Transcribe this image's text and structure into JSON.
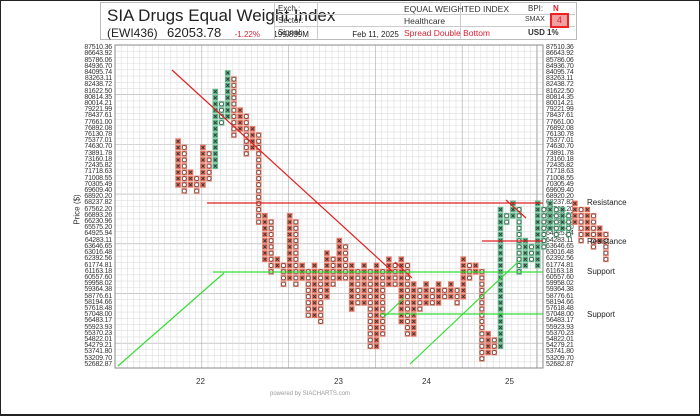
{
  "header": {
    "title": "SIA Drugs Equal Weight Index",
    "symbol": "(EWI436)",
    "price": "62053.78",
    "change_pct": "-1.22%",
    "volume": "199.839M",
    "date": "Feb 11, 2025",
    "exch_label": "Exch.:",
    "exch_value": "EQUAL WEIGHTED INDEX",
    "sector_label": "Sector:",
    "sector_value": "Healthcare",
    "signal_label": "Signal:",
    "signal_value": "Spread Double Bottom",
    "bpi_label": "BPI:",
    "bpi_value": "N",
    "smax_label": "SMAX",
    "smax_value": "4",
    "usd_label": "USD",
    "usd_value": "1%"
  },
  "footer": "powered by SIACHARTS.com",
  "colors": {
    "x_fill": "#e8735f",
    "o_fill": "#e8735f",
    "green_fill": "#5fb88a",
    "resistance": "#e02020",
    "support": "#33dd33",
    "grid": "#bbbbbb"
  },
  "chart_data": {
    "type": "point-and-figure",
    "title": "SIA Drugs Equal Weight Index",
    "ylabel": "Price ($)",
    "xlabel": "",
    "x_tick_labels": [
      "22",
      "23",
      "24",
      "25"
    ],
    "price_levels": [
      "87510.36",
      "86643.92",
      "85786.06",
      "84936.70",
      "84095.74",
      "83263.11",
      "82438.72",
      "81622.50",
      "80814.35",
      "80014.21",
      "79221.99",
      "78437.61",
      "77661.00",
      "76892.08",
      "76130.78",
      "75377.01",
      "74630.70",
      "73891.78",
      "73160.18",
      "72435.82",
      "71718.63",
      "71008.55",
      "70305.49",
      "69609.40",
      "68920.20",
      "68237.82",
      "67562.20",
      "66893.26",
      "66230.96",
      "65575.20",
      "64925.94",
      "64283.11",
      "63646.65",
      "63016.48",
      "62392.56",
      "61774.81",
      "61163.18",
      "60557.60",
      "59958.02",
      "59364.38",
      "58776.61",
      "58194.66",
      "57618.48",
      "57048.00",
      "56483.17",
      "55923.93",
      "55370.23",
      "54822.01",
      "54279.21",
      "53741.80",
      "53209.70",
      "52682.87"
    ],
    "annotations": [
      {
        "label": "Resistance",
        "price": "68920.20"
      },
      {
        "label": "Resistance",
        "price": "64283.11"
      },
      {
        "label": "Support",
        "price": "61774.81"
      },
      {
        "label": "Support",
        "price": "57618.48"
      }
    ],
    "columns": [
      {
        "t": "X",
        "hi": 15,
        "lo": 22
      },
      {
        "t": "O",
        "hi": 16,
        "lo": 23
      },
      {
        "t": "X",
        "hi": 20,
        "lo": 22
      },
      {
        "t": "O",
        "hi": 21,
        "lo": 23
      },
      {
        "t": "X",
        "hi": 16,
        "lo": 22
      },
      {
        "t": "O",
        "hi": 17,
        "lo": 21
      },
      {
        "t": "X",
        "hi": 7,
        "lo": 19
      },
      {
        "t": "O",
        "hi": 9,
        "lo": 12
      },
      {
        "t": "X",
        "hi": 4,
        "lo": 11
      },
      {
        "t": "O",
        "hi": 5,
        "lo": 14
      },
      {
        "t": "X",
        "hi": 10,
        "lo": 13
      },
      {
        "t": "O",
        "hi": 11,
        "lo": 17
      },
      {
        "t": "X",
        "hi": 13,
        "lo": 16
      },
      {
        "t": "O",
        "hi": 14,
        "lo": 28
      },
      {
        "t": "X",
        "hi": 27,
        "lo": 34
      },
      {
        "t": "O",
        "hi": 28,
        "lo": 36
      },
      {
        "t": "X",
        "hi": 34,
        "lo": 35
      },
      {
        "t": "O",
        "hi": 35,
        "lo": 38
      },
      {
        "t": "X",
        "hi": 27,
        "lo": 37
      },
      {
        "t": "O",
        "hi": 28,
        "lo": 38
      },
      {
        "t": "X",
        "hi": 35,
        "lo": 37
      },
      {
        "t": "O",
        "hi": 36,
        "lo": 43
      },
      {
        "t": "X",
        "hi": 35,
        "lo": 43
      },
      {
        "t": "O",
        "hi": 36,
        "lo": 44
      },
      {
        "t": "X",
        "hi": 33,
        "lo": 40
      },
      {
        "t": "O",
        "hi": 34,
        "lo": 38
      },
      {
        "t": "X",
        "hi": 31,
        "lo": 37
      },
      {
        "t": "O",
        "hi": 32,
        "lo": 37
      },
      {
        "t": "X",
        "hi": 35,
        "lo": 42
      },
      {
        "t": "O",
        "hi": 36,
        "lo": 41
      },
      {
        "t": "X",
        "hi": 35,
        "lo": 41
      },
      {
        "t": "O",
        "hi": 36,
        "lo": 48
      },
      {
        "t": "X",
        "hi": 35,
        "lo": 48
      },
      {
        "t": "O",
        "hi": 36,
        "lo": 46
      },
      {
        "t": "X",
        "hi": 34,
        "lo": 38
      },
      {
        "t": "O",
        "hi": 35,
        "lo": 38
      },
      {
        "t": "X",
        "hi": 34,
        "lo": 44
      },
      {
        "t": "O",
        "hi": 35,
        "lo": 46
      },
      {
        "t": "X",
        "hi": 38,
        "lo": 46
      },
      {
        "t": "O",
        "hi": 39,
        "lo": 42
      },
      {
        "t": "X",
        "hi": 38,
        "lo": 41
      },
      {
        "t": "O",
        "hi": 39,
        "lo": 41
      },
      {
        "t": "X",
        "hi": 38,
        "lo": 41
      },
      {
        "t": "O",
        "hi": 39,
        "lo": 40
      },
      {
        "t": "X",
        "hi": 38,
        "lo": 40
      },
      {
        "t": "O",
        "hi": 39,
        "lo": 41
      },
      {
        "t": "X",
        "hi": 34,
        "lo": 40
      },
      {
        "t": "O",
        "hi": 35,
        "lo": 37
      },
      {
        "t": "X",
        "hi": 35,
        "lo": 36
      },
      {
        "t": "O",
        "hi": 36,
        "lo": 50
      },
      {
        "t": "X",
        "hi": 46,
        "lo": 49
      },
      {
        "t": "O",
        "hi": 47,
        "lo": 49
      },
      {
        "t": "X",
        "hi": 26,
        "lo": 48
      },
      {
        "t": "O",
        "hi": 27,
        "lo": 28
      },
      {
        "t": "X",
        "hi": 25,
        "lo": 27
      },
      {
        "t": "O",
        "hi": 26,
        "lo": 36
      },
      {
        "t": "X",
        "hi": 31,
        "lo": 35
      },
      {
        "t": "O",
        "hi": 32,
        "lo": 34
      },
      {
        "t": "X",
        "hi": 25,
        "lo": 35
      },
      {
        "t": "O",
        "hi": 26,
        "lo": 32
      },
      {
        "t": "X",
        "hi": 25,
        "lo": 29
      },
      {
        "t": "O",
        "hi": 26,
        "lo": 30
      },
      {
        "t": "X",
        "hi": 26,
        "lo": 29
      },
      {
        "t": "O",
        "hi": 27,
        "lo": 30
      },
      {
        "t": "X",
        "hi": 25,
        "lo": 28
      },
      {
        "t": "O",
        "hi": 26,
        "lo": 31
      },
      {
        "t": "X",
        "hi": 26,
        "lo": 30
      },
      {
        "t": "O",
        "hi": 27,
        "lo": 32
      },
      {
        "t": "X",
        "hi": 29,
        "lo": 31
      },
      {
        "t": "O",
        "hi": 30,
        "lo": 34
      }
    ]
  }
}
